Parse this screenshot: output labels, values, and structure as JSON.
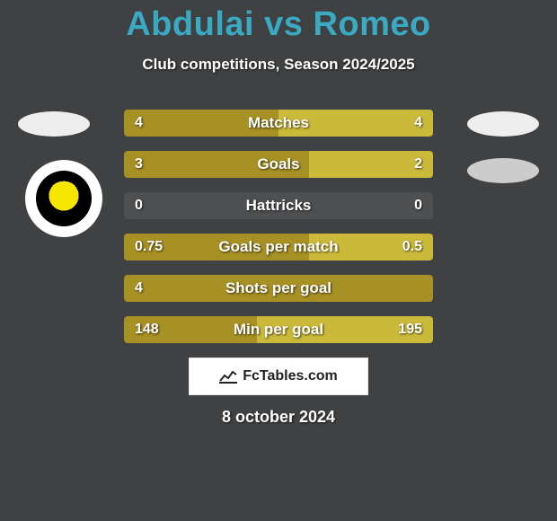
{
  "title_left": "Abdulai",
  "title_vs": "vs",
  "title_right": "Romeo",
  "title_color": "#3aa9c2",
  "subtitle": "Club competitions, Season 2024/2025",
  "background_color": "#3f4143",
  "bar_bg_color": "#4d4f51",
  "player1_color": "#a79024",
  "player2_color": "#cbb93a",
  "bars": [
    {
      "label": "Matches",
      "left_text": "4",
      "right_text": "4",
      "left_val": 4,
      "right_val": 4,
      "max": 8
    },
    {
      "label": "Goals",
      "left_text": "3",
      "right_text": "2",
      "left_val": 3,
      "right_val": 2,
      "max": 5
    },
    {
      "label": "Hattricks",
      "left_text": "0",
      "right_text": "0",
      "left_val": 0,
      "right_val": 0,
      "max": 1
    },
    {
      "label": "Goals per match",
      "left_text": "0.75",
      "right_text": "0.5",
      "left_val": 0.75,
      "right_val": 0.5,
      "max": 1.25
    },
    {
      "label": "Shots per goal",
      "left_text": "4",
      "right_text": "",
      "left_val": 4,
      "right_val": 0,
      "max": 4
    },
    {
      "label": "Min per goal",
      "left_text": "148",
      "right_text": "195",
      "left_val": 148,
      "right_val": 195,
      "max": 343
    }
  ],
  "bar_label_fontsize": 17,
  "bar_value_fontsize": 16,
  "footer_text": "FcTables.com",
  "date_text": "8 october 2024"
}
